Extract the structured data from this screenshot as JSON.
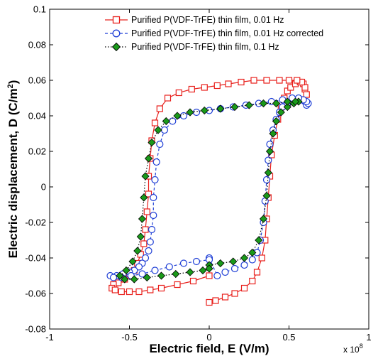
{
  "chart_data": {
    "type": "scatter",
    "title": "",
    "xlabel": "Electric field, E (V/m)",
    "ylabel_prefix": "Electric displacement, D (C/m",
    "ylabel_sup": "2",
    "ylabel_suffix": ")",
    "x_exponent_base": "x 10",
    "x_exponent_power": "8",
    "xlim": [
      -1,
      1
    ],
    "ylim": [
      -0.08,
      0.1
    ],
    "x_ticks": [
      -1,
      -0.5,
      0,
      0.5,
      1
    ],
    "x_tick_labels": [
      "-1",
      "-0.5",
      "0",
      "0.5",
      "1"
    ],
    "y_ticks": [
      -0.08,
      -0.06,
      -0.04,
      -0.02,
      0,
      0.02,
      0.04,
      0.06,
      0.08,
      0.1
    ],
    "y_tick_labels": [
      "-0.08",
      "-0.06",
      "-0.04",
      "-0.02",
      "0",
      "0.02",
      "0.04",
      "0.06",
      "0.08",
      "0.1"
    ],
    "grid": false,
    "legend_position": "top-right",
    "series": [
      {
        "name": "Purified P(VDF-TrFE) thin film, 0.01 Hz",
        "color": "#e8201c",
        "marker": "square",
        "line": "solid",
        "x": [
          0.0,
          0.04,
          0.1,
          0.16,
          0.22,
          0.27,
          0.3,
          0.33,
          0.35,
          0.36,
          0.37,
          0.38,
          0.39,
          0.41,
          0.43,
          0.45,
          0.47,
          0.49,
          0.51,
          0.54,
          0.57,
          0.59,
          0.6,
          0.61,
          0.6,
          0.58,
          0.55,
          0.5,
          0.44,
          0.36,
          0.28,
          0.2,
          0.12,
          0.05,
          -0.03,
          -0.11,
          -0.19,
          -0.26,
          -0.31,
          -0.34,
          -0.36,
          -0.37,
          -0.38,
          -0.38,
          -0.39,
          -0.4,
          -0.41,
          -0.43,
          -0.45,
          -0.47,
          -0.5,
          -0.53,
          -0.57,
          -0.6,
          -0.61,
          -0.59,
          -0.55,
          -0.5,
          -0.44,
          -0.37,
          -0.3,
          -0.2,
          -0.1,
          0.0
        ],
        "y": [
          -0.065,
          -0.064,
          -0.062,
          -0.06,
          -0.057,
          -0.053,
          -0.048,
          -0.04,
          -0.03,
          -0.018,
          -0.006,
          0.006,
          0.018,
          0.029,
          0.038,
          0.045,
          0.05,
          0.054,
          0.056,
          0.058,
          0.059,
          0.058,
          0.055,
          0.052,
          0.056,
          0.059,
          0.06,
          0.06,
          0.06,
          0.06,
          0.06,
          0.059,
          0.058,
          0.057,
          0.056,
          0.055,
          0.053,
          0.05,
          0.044,
          0.036,
          0.026,
          0.016,
          0.006,
          -0.004,
          -0.014,
          -0.024,
          -0.032,
          -0.038,
          -0.043,
          -0.047,
          -0.05,
          -0.052,
          -0.054,
          -0.055,
          -0.057,
          -0.058,
          -0.059,
          -0.059,
          -0.059,
          -0.058,
          -0.057,
          -0.055,
          -0.053,
          -0.05
        ]
      },
      {
        "name": "Purified P(VDF-TrFE) thin film, 0.01 Hz corrected",
        "color": "#1f3fd6",
        "marker": "circle",
        "line": "dashed",
        "x": [
          0.0,
          0.05,
          0.1,
          0.16,
          0.22,
          0.27,
          0.3,
          0.32,
          0.34,
          0.35,
          0.36,
          0.37,
          0.38,
          0.4,
          0.42,
          0.44,
          0.46,
          0.49,
          0.52,
          0.55,
          0.58,
          0.6,
          0.61,
          0.62,
          0.61,
          0.59,
          0.56,
          0.52,
          0.46,
          0.39,
          0.31,
          0.23,
          0.15,
          0.07,
          0.0,
          -0.08,
          -0.16,
          -0.23,
          -0.28,
          -0.31,
          -0.33,
          -0.34,
          -0.35,
          -0.35,
          -0.36,
          -0.37,
          -0.38,
          -0.4,
          -0.42,
          -0.44,
          -0.47,
          -0.5,
          -0.54,
          -0.58,
          -0.62,
          -0.6,
          -0.55,
          -0.49,
          -0.42,
          -0.34,
          -0.25,
          -0.16,
          -0.08,
          0.0
        ],
        "y": [
          -0.04,
          -0.05,
          -0.048,
          -0.046,
          -0.044,
          -0.041,
          -0.037,
          -0.03,
          -0.02,
          -0.008,
          0.004,
          0.015,
          0.024,
          0.032,
          0.038,
          0.042,
          0.045,
          0.047,
          0.048,
          0.049,
          0.049,
          0.048,
          0.046,
          0.047,
          0.048,
          0.049,
          0.05,
          0.05,
          0.049,
          0.048,
          0.047,
          0.046,
          0.045,
          0.044,
          0.043,
          0.042,
          0.04,
          0.037,
          0.032,
          0.024,
          0.014,
          0.004,
          -0.006,
          -0.016,
          -0.024,
          -0.031,
          -0.036,
          -0.04,
          -0.043,
          -0.045,
          -0.047,
          -0.048,
          -0.049,
          -0.05,
          -0.05,
          -0.051,
          -0.051,
          -0.05,
          -0.049,
          -0.047,
          -0.045,
          -0.043,
          -0.042,
          -0.041
        ]
      },
      {
        "name": "Purified P(VDF-TrFE) thin film, 0.1 Hz",
        "color": "#1a9a1a",
        "marker": "diamond",
        "line": "dotted",
        "x": [
          0.0,
          0.07,
          0.15,
          0.22,
          0.27,
          0.31,
          0.34,
          0.36,
          0.37,
          0.38,
          0.4,
          0.42,
          0.45,
          0.49,
          0.53,
          0.56,
          0.54,
          0.49,
          0.42,
          0.34,
          0.25,
          0.16,
          0.07,
          -0.03,
          -0.12,
          -0.2,
          -0.27,
          -0.32,
          -0.36,
          -0.38,
          -0.4,
          -0.41,
          -0.42,
          -0.43,
          -0.45,
          -0.48,
          -0.52,
          -0.56,
          -0.53,
          -0.47,
          -0.39,
          -0.3,
          -0.21,
          -0.12,
          -0.04,
          0.0
        ],
        "y": [
          -0.044,
          -0.043,
          -0.042,
          -0.04,
          -0.037,
          -0.03,
          -0.018,
          -0.005,
          0.008,
          0.02,
          0.03,
          0.037,
          0.042,
          0.045,
          0.047,
          0.048,
          0.048,
          0.048,
          0.047,
          0.047,
          0.046,
          0.045,
          0.044,
          0.043,
          0.042,
          0.04,
          0.037,
          0.032,
          0.025,
          0.016,
          0.006,
          -0.006,
          -0.018,
          -0.028,
          -0.036,
          -0.042,
          -0.047,
          -0.05,
          -0.052,
          -0.052,
          -0.051,
          -0.05,
          -0.049,
          -0.048,
          -0.047,
          -0.046
        ]
      }
    ]
  }
}
